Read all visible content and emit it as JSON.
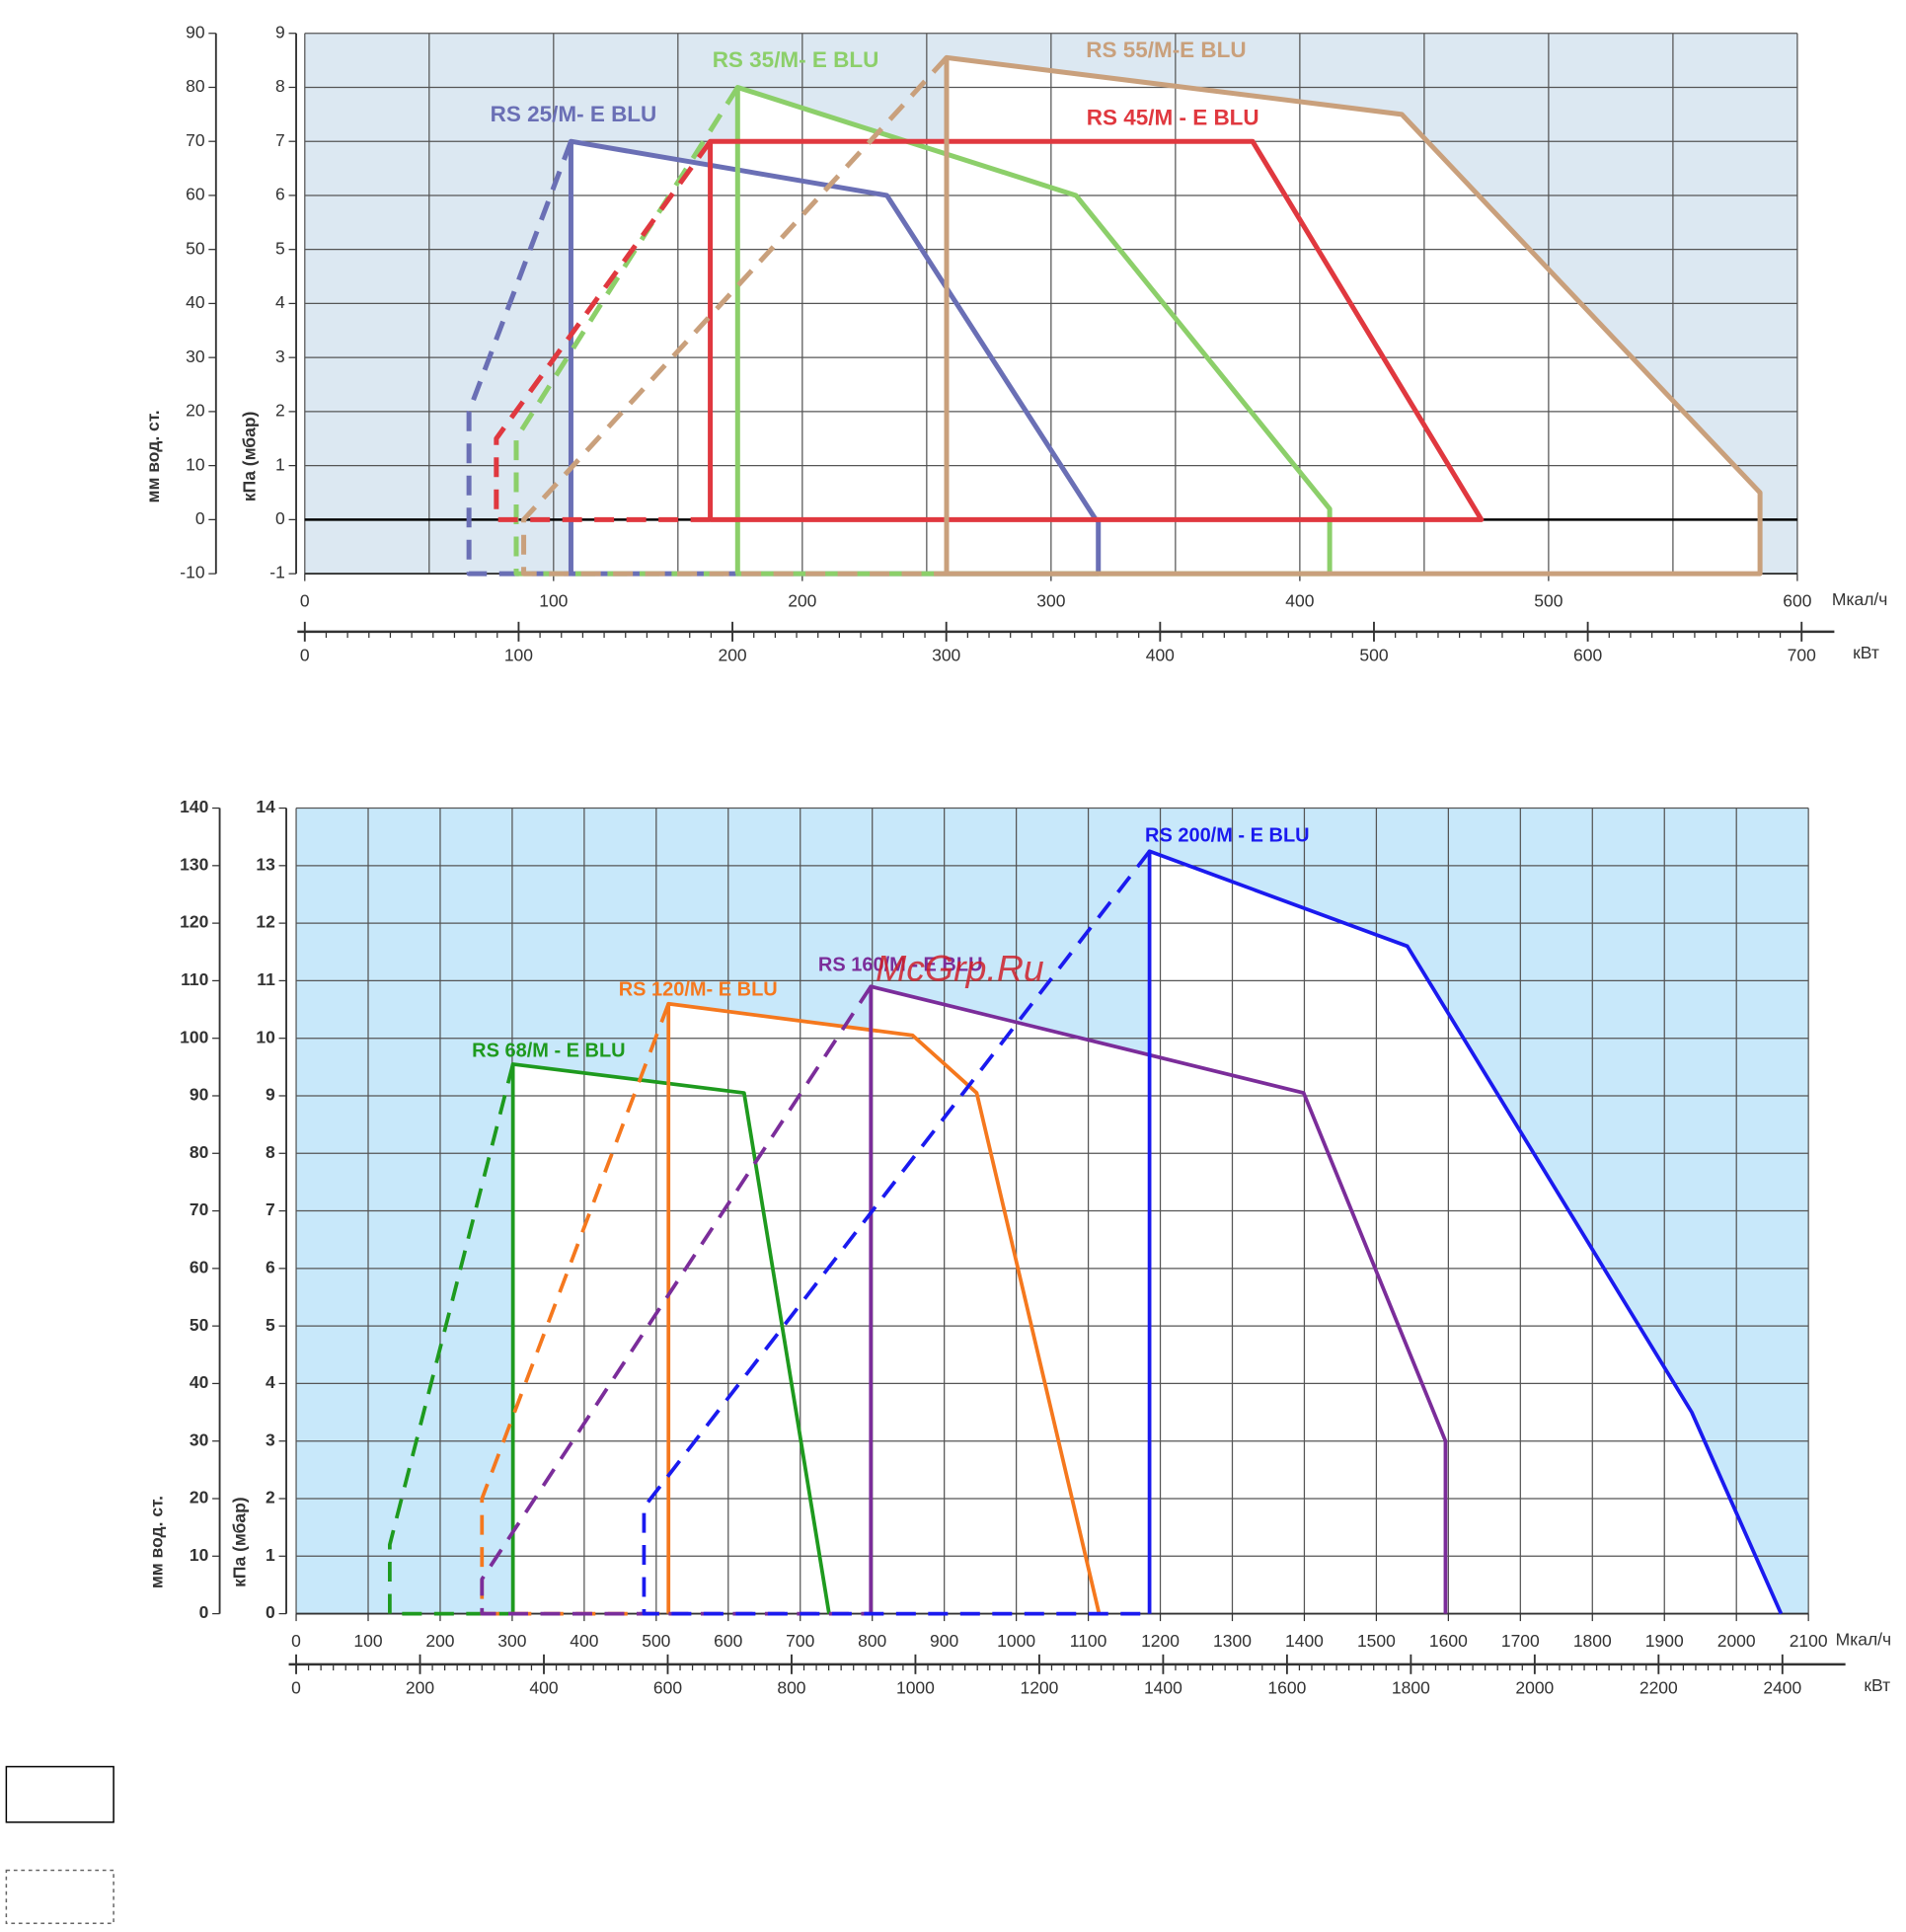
{
  "chart_data": [
    {
      "type": "line",
      "x_label": "Мкал/ч",
      "x2_label": "кВт",
      "y_label": "кПа (мбар)",
      "y2_label": "мм вод. ст.",
      "xlim": [
        0,
        600
      ],
      "xticks": [
        0,
        100,
        200,
        300,
        400,
        500,
        600
      ],
      "x2lim": [
        0,
        698
      ],
      "x2ticks": [
        0,
        100,
        200,
        300,
        400,
        500,
        600,
        700
      ],
      "ylim": [
        -1,
        9
      ],
      "yticks": [
        -1,
        0,
        1,
        2,
        3,
        4,
        5,
        6,
        7,
        8,
        9
      ],
      "y2lim": [
        -10,
        90
      ],
      "y2ticks": [
        -10,
        0,
        10,
        20,
        30,
        40,
        50,
        60,
        70,
        80,
        90
      ],
      "grid": true,
      "background": "#dce8f2",
      "series": [
        {
          "name": "RS 25/M- E BLU",
          "color": "#6a6fb5",
          "x": [
            107,
            107,
            234,
            318,
            319,
            319,
            107
          ],
          "values": [
            -1,
            7,
            6,
            0,
            0,
            -1,
            -1
          ],
          "dashed_x": [
            107,
            66,
            66,
            107
          ],
          "dashed_values": [
            7,
            2,
            -1,
            -1
          ]
        },
        {
          "name": "RS 35/M- E BLU",
          "color": "#8ccf6a",
          "x": [
            174,
            174,
            310,
            412,
            412,
            174
          ],
          "values": [
            -1,
            8,
            6,
            0.2,
            -1,
            -1
          ],
          "dashed_x": [
            174,
            85,
            85,
            174
          ],
          "dashed_values": [
            8,
            1.5,
            -1,
            -1
          ]
        },
        {
          "name": "RS 45/M - E BLU",
          "color": "#e0383f",
          "x": [
            163,
            163,
            381,
            473,
            163
          ],
          "values": [
            0,
            7,
            7,
            0,
            0
          ],
          "dashed_x": [
            163,
            77,
            77,
            163
          ],
          "dashed_values": [
            7,
            1.5,
            0,
            0
          ]
        },
        {
          "name": "RS 55/M-E BLU",
          "color": "#c9a07c",
          "x": [
            258,
            258,
            441,
            585,
            585,
            258
          ],
          "values": [
            -1,
            8.55,
            7.5,
            0.5,
            -1,
            -1
          ],
          "dashed_x": [
            258,
            88,
            88,
            258
          ],
          "dashed_values": [
            8.55,
            0,
            -1,
            -1
          ]
        }
      ]
    },
    {
      "type": "line",
      "x_label": "Мкал/ч",
      "x2_label": "кВт",
      "y_label": "кПа (мбар)",
      "y2_label": "мм вод. ст.",
      "xlim": [
        0,
        2100
      ],
      "xticks": [
        0,
        100,
        200,
        300,
        400,
        500,
        600,
        700,
        800,
        900,
        1000,
        1100,
        1200,
        1300,
        1400,
        1500,
        1600,
        1700,
        1800,
        1900,
        2000,
        2100
      ],
      "x2lim": [
        0,
        2442
      ],
      "x2ticks": [
        0,
        200,
        400,
        600,
        800,
        1000,
        1200,
        1400,
        1600,
        1800,
        2000,
        2200,
        2400
      ],
      "ylim": [
        0,
        14
      ],
      "yticks": [
        0,
        1,
        2,
        3,
        4,
        5,
        6,
        7,
        8,
        9,
        10,
        11,
        12,
        13,
        14
      ],
      "y2lim": [
        0,
        140
      ],
      "y2ticks": [
        0,
        10,
        20,
        30,
        40,
        50,
        60,
        70,
        80,
        90,
        100,
        110,
        120,
        130,
        140
      ],
      "grid": true,
      "background": "#c8e8fa",
      "watermark": "McGrp.Ru",
      "series": [
        {
          "name": "RS 68/M - E BLU",
          "color": "#1e9a1e",
          "x": [
            301,
            301,
            622,
            740
          ],
          "values": [
            0,
            9.55,
            9.05,
            0
          ],
          "dashed_x": [
            301,
            130,
            130,
            301
          ],
          "dashed_values": [
            9.55,
            1.2,
            0,
            0
          ]
        },
        {
          "name": "RS 120/M- E BLU",
          "color": "#f5781e",
          "x": [
            517,
            517,
            856,
            945,
            1115
          ],
          "values": [
            0,
            10.6,
            10.05,
            9.05,
            0
          ],
          "dashed_x": [
            517,
            258,
            258,
            517
          ],
          "dashed_values": [
            10.6,
            2,
            0,
            0
          ]
        },
        {
          "name": "RS 160/M - E BLU",
          "color": "#7b2d9a",
          "x": [
            798,
            798,
            1399,
            1596,
            1596
          ],
          "values": [
            0,
            10.9,
            9.05,
            3,
            0
          ],
          "dashed_x": [
            798,
            258,
            258,
            798
          ],
          "dashed_values": [
            10.9,
            0.6,
            0,
            0
          ]
        },
        {
          "name": "RS 200/M - E BLU",
          "color": "#1a1aef",
          "x": [
            1185,
            1185,
            1543,
            1938,
            2062
          ],
          "values": [
            0,
            13.25,
            11.6,
            3.5,
            0
          ],
          "dashed_x": [
            1185,
            483,
            483,
            1185
          ],
          "dashed_values": [
            13.25,
            1.85,
            0,
            0
          ]
        }
      ]
    }
  ]
}
